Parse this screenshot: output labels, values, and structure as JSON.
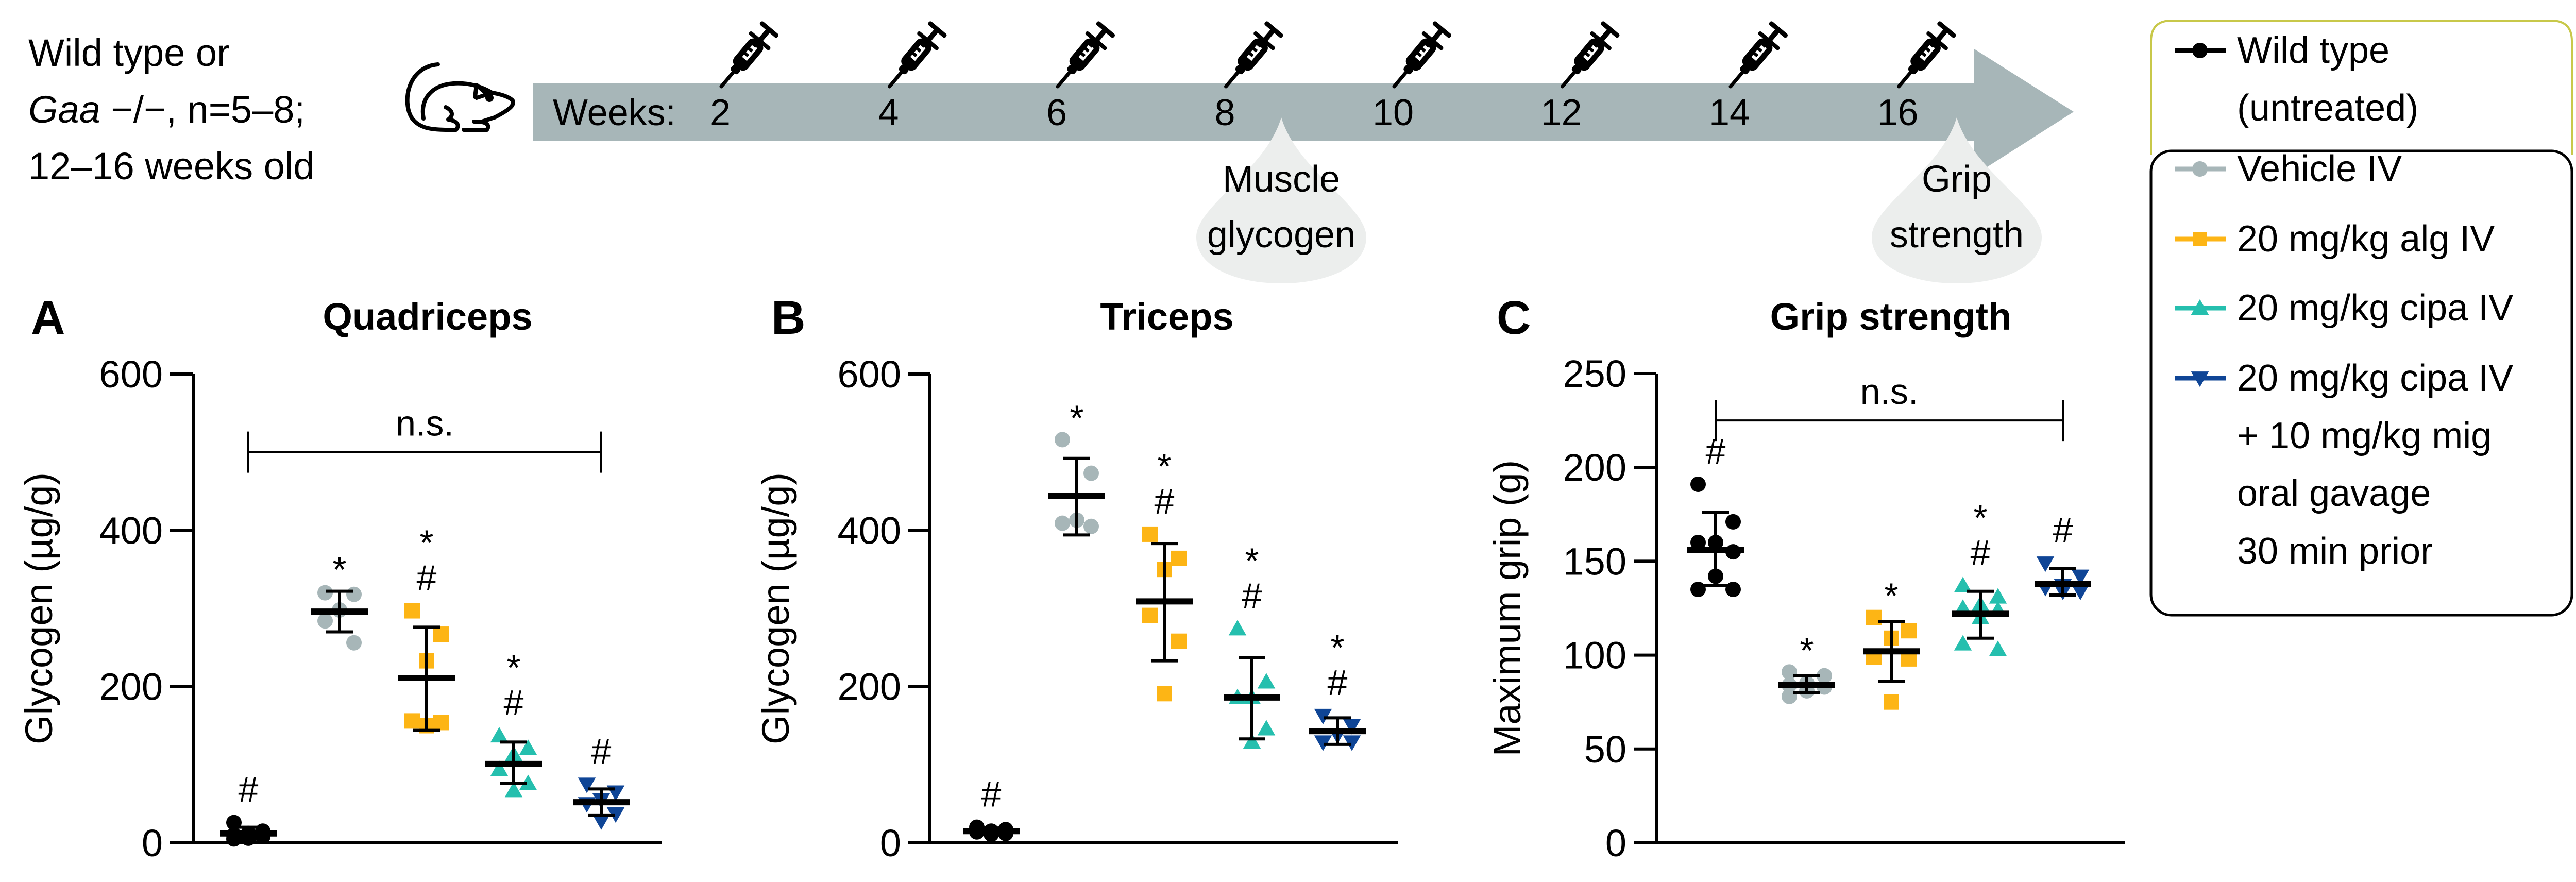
{
  "intro": {
    "line1": "Wild type or",
    "line2_italic": "Gaa",
    "line2_rest": " −/−, n=5–8;",
    "line3": "12–16 weeks old",
    "icon": "mouse-icon"
  },
  "timeline": {
    "label": "Weeks:",
    "weeks": [
      "2",
      "4",
      "6",
      "8",
      "10",
      "12",
      "14",
      "16"
    ],
    "injection_icon": "syringe-icon",
    "bar_color": "#a7b6b8",
    "bubble_color": "#eceeed",
    "bubbles": [
      {
        "after_week": "8",
        "lines": [
          "Muscle",
          "glycogen"
        ]
      },
      {
        "after_week": "16",
        "lines": [
          "Grip",
          "strength"
        ]
      }
    ]
  },
  "legend": {
    "outer_border_color": "#c8c84a",
    "items": [
      {
        "key": "wt",
        "lines": [
          "Wild type",
          "(untreated)"
        ],
        "marker": "circle",
        "color": "#000000"
      },
      {
        "key": "veh",
        "lines": [
          "Vehicle IV"
        ],
        "marker": "circle",
        "color": "#a7b6b8"
      },
      {
        "key": "alg",
        "lines": [
          "20 mg/kg alg IV"
        ],
        "marker": "square",
        "color": "#fdb515"
      },
      {
        "key": "cipa",
        "lines": [
          "20 mg/kg cipa IV"
        ],
        "marker": "triangle-up",
        "color": "#25bfae"
      },
      {
        "key": "cipamig",
        "lines": [
          "20 mg/kg cipa IV",
          "+ 10 mg/kg mig",
          "oral gavage",
          "30 min prior"
        ],
        "marker": "triangle-down",
        "color": "#0f4596"
      }
    ]
  },
  "chart_data": [
    {
      "type": "scatter",
      "panel": "A",
      "title": "Quadriceps",
      "xlabel": "",
      "ylabel": "Glycogen (µg/g)",
      "ylim": [
        0,
        600
      ],
      "yticks": [
        0,
        200,
        400,
        600
      ],
      "grid": false,
      "bracket": {
        "from": "wt",
        "to": "cipamig",
        "label": "n.s.",
        "y": 500
      },
      "groups": [
        {
          "key": "wt",
          "marks": [
            "#"
          ],
          "mean": 12,
          "err": [
            6,
            20
          ],
          "points": [
            26,
            15,
            12,
            10,
            8,
            6,
            5
          ]
        },
        {
          "key": "veh",
          "marks": [
            "*"
          ],
          "mean": 296,
          "err": [
            270,
            322
          ],
          "points": [
            320,
            318,
            298,
            284,
            256
          ]
        },
        {
          "key": "alg",
          "marks": [
            "*",
            "#"
          ],
          "mean": 211,
          "err": [
            144,
            276
          ],
          "points": [
            297,
            267,
            233,
            156,
            154,
            150
          ]
        },
        {
          "key": "cipa",
          "marks": [
            "*",
            "#"
          ],
          "mean": 101,
          "err": [
            76,
            129
          ],
          "points": [
            137,
            121,
            113,
            94,
            76,
            67
          ]
        },
        {
          "key": "cipamig",
          "marks": [
            "#"
          ],
          "mean": 52,
          "err": [
            35,
            69
          ],
          "points": [
            75,
            65,
            55,
            50,
            37,
            28
          ]
        }
      ]
    },
    {
      "type": "scatter",
      "panel": "B",
      "title": "Triceps",
      "xlabel": "",
      "ylabel": "Glycogen (µg/g)",
      "ylim": [
        0,
        600
      ],
      "yticks": [
        0,
        200,
        400,
        600
      ],
      "grid": false,
      "groups": [
        {
          "key": "wt",
          "marks": [
            "#"
          ],
          "mean": 15,
          "err": [
            11,
            19
          ],
          "points": [
            20,
            17,
            15,
            14,
            12,
            11
          ]
        },
        {
          "key": "veh",
          "marks": [
            "*"
          ],
          "mean": 444,
          "err": [
            394,
            492
          ],
          "points": [
            516,
            473,
            413,
            409,
            405
          ]
        },
        {
          "key": "alg",
          "marks": [
            "*",
            "#"
          ],
          "mean": 309,
          "err": [
            233,
            383
          ],
          "points": [
            395,
            364,
            350,
            291,
            258,
            191
          ]
        },
        {
          "key": "cipa",
          "marks": [
            "*",
            "#"
          ],
          "mean": 186,
          "err": [
            133,
            237
          ],
          "points": [
            274,
            206,
            186,
            186,
            146,
            129
          ]
        },
        {
          "key": "cipamig",
          "marks": [
            "*",
            "#"
          ],
          "mean": 143,
          "err": [
            126,
            160
          ],
          "points": [
            163,
            150,
            138,
            129,
            129
          ]
        }
      ]
    },
    {
      "type": "scatter",
      "panel": "C",
      "title": "Grip strength",
      "xlabel": "",
      "ylabel": "Maximum grip (g)",
      "ylim": [
        0,
        250
      ],
      "yticks": [
        0,
        50,
        100,
        150,
        200,
        250
      ],
      "grid": false,
      "bracket": {
        "from": "wt",
        "to": "cipamig",
        "label": "n.s.",
        "y": 225
      },
      "groups": [
        {
          "key": "wt",
          "marks": [
            "#"
          ],
          "mean": 156,
          "err": [
            137,
            176
          ],
          "points": [
            191,
            171,
            160,
            160,
            155,
            142,
            135,
            135
          ]
        },
        {
          "key": "veh",
          "marks": [
            "*"
          ],
          "mean": 84,
          "err": [
            80,
            89
          ],
          "points": [
            91,
            89,
            85,
            84,
            83,
            81,
            78
          ]
        },
        {
          "key": "alg",
          "marks": [
            "*"
          ],
          "mean": 102,
          "err": [
            86,
            118
          ],
          "points": [
            120,
            113,
            109,
            99,
            98,
            75
          ]
        },
        {
          "key": "cipa",
          "marks": [
            "*",
            "#"
          ],
          "mean": 122,
          "err": [
            109,
            134
          ],
          "points": [
            137,
            131,
            127,
            125,
            124,
            120,
            106,
            103
          ]
        },
        {
          "key": "cipamig",
          "marks": [
            "#"
          ],
          "mean": 138,
          "err": [
            132,
            146
          ],
          "points": [
            149,
            142,
            137,
            136,
            134,
            134
          ]
        }
      ]
    }
  ]
}
